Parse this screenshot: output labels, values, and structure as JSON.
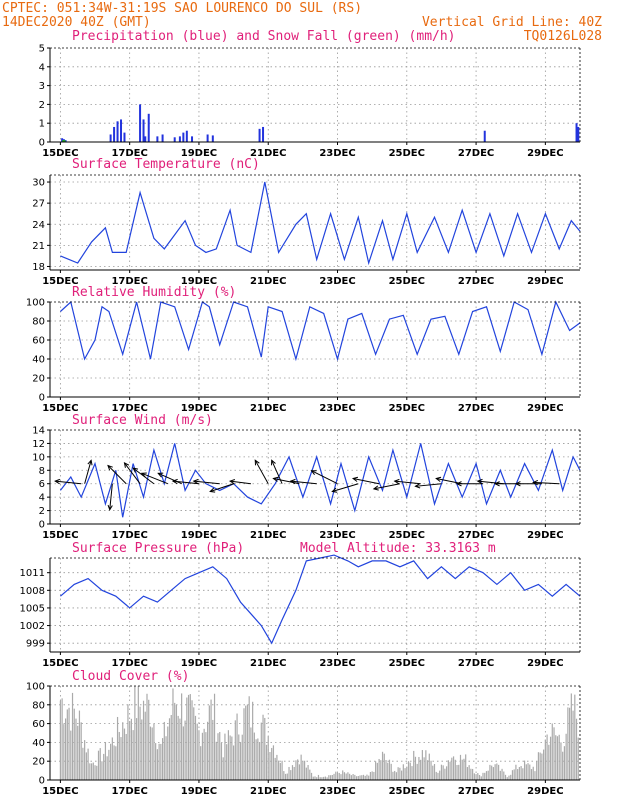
{
  "header": {
    "left1": "CPTEC:   051:34W-31:19S  SAO LOURENCO DO SUL (RS)",
    "left2": "14DEC2020 40Z (GMT)",
    "right1": "Vertical Grid Line: 40Z",
    "right2": "TQ0126L028"
  },
  "colors": {
    "title": "#e0207a",
    "header": "#e86a10",
    "line": "#2244dd",
    "precip": "#2233dd",
    "snow": "#22aa22",
    "cloud": "#aaaaaa",
    "vector": "#000000"
  },
  "x_labels": [
    "15DEC",
    "17DEC",
    "19DEC",
    "21DEC",
    "23DEC",
    "25DEC",
    "27DEC",
    "29DEC"
  ],
  "chart_data": [
    {
      "type": "bar",
      "title": "Precipitation (blue) and Snow Fall (green) (mm/h)",
      "yticks": [
        "0",
        "1",
        "2",
        "3",
        "4",
        "5"
      ],
      "ylim": [
        0,
        5
      ],
      "x_days": [
        0.05,
        0.1,
        0.15,
        1.45,
        1.55,
        1.65,
        1.75,
        1.85,
        2.3,
        2.4,
        2.45,
        2.55,
        2.8,
        2.95,
        3.3,
        3.45,
        3.55,
        3.65,
        3.8,
        4.25,
        4.4,
        5.75,
        5.85,
        12.25,
        14.9,
        14.95
      ],
      "values": [
        0.2,
        0.15,
        0.1,
        0.4,
        0.8,
        1.1,
        1.2,
        0.5,
        2.0,
        1.2,
        0.3,
        1.5,
        0.3,
        0.4,
        0.25,
        0.3,
        0.5,
        0.6,
        0.3,
        0.4,
        0.35,
        0.7,
        0.8,
        0.6,
        1.0,
        0.8
      ],
      "snow_x_days": [
        0.08,
        0.12
      ],
      "snow_values": [
        0.1,
        0.1
      ]
    },
    {
      "type": "line",
      "title": "Surface Temperature (nC)",
      "yticks": [
        "18",
        "21",
        "24",
        "27",
        "30"
      ],
      "ylim": [
        17.5,
        31
      ],
      "x_days": [
        0,
        0.5,
        0.9,
        1.3,
        1.5,
        1.9,
        2.3,
        2.7,
        3.0,
        3.6,
        3.9,
        4.2,
        4.5,
        4.9,
        5.1,
        5.5,
        5.9,
        6.3,
        6.8,
        7.1,
        7.4,
        7.8,
        8.2,
        8.6,
        8.9,
        9.3,
        9.6,
        10.0,
        10.3,
        10.8,
        11.2,
        11.6,
        12.0,
        12.4,
        12.8,
        13.2,
        13.6,
        14.0,
        14.4,
        14.75,
        15.0
      ],
      "values": [
        19.5,
        18.5,
        21.5,
        23.5,
        20.0,
        20.0,
        28.5,
        22.0,
        20.5,
        24.5,
        21.0,
        20.0,
        20.5,
        26.0,
        21.0,
        20.0,
        30.0,
        20.0,
        24.0,
        25.5,
        19.0,
        25.5,
        19.0,
        25.0,
        18.5,
        24.5,
        19.0,
        25.5,
        20.0,
        25.0,
        20.0,
        26.0,
        20.0,
        25.5,
        19.5,
        25.5,
        20.0,
        25.5,
        20.5,
        24.5,
        23.0
      ]
    },
    {
      "type": "line",
      "title": "Relative Humidity (%)",
      "yticks": [
        "0",
        "20",
        "40",
        "60",
        "80",
        "100"
      ],
      "ylim": [
        0,
        100
      ],
      "x_days": [
        0,
        0.3,
        0.7,
        1.0,
        1.2,
        1.4,
        1.8,
        2.2,
        2.6,
        2.9,
        3.3,
        3.7,
        4.1,
        4.3,
        4.6,
        5.0,
        5.4,
        5.8,
        6.0,
        6.4,
        6.8,
        7.2,
        7.6,
        8.0,
        8.3,
        8.7,
        9.1,
        9.5,
        9.9,
        10.3,
        10.7,
        11.1,
        11.5,
        11.9,
        12.3,
        12.7,
        13.1,
        13.5,
        13.9,
        14.3,
        14.7,
        15.0
      ],
      "values": [
        90,
        100,
        40,
        60,
        95,
        90,
        45,
        100,
        40,
        100,
        95,
        50,
        100,
        95,
        55,
        100,
        95,
        42,
        95,
        90,
        40,
        95,
        88,
        40,
        82,
        88,
        45,
        82,
        86,
        45,
        82,
        85,
        45,
        90,
        95,
        48,
        100,
        92,
        45,
        100,
        70,
        78
      ]
    },
    {
      "type": "line",
      "title": "Surface Wind (m/s)",
      "yticks": [
        "0",
        "2",
        "4",
        "6",
        "8",
        "10",
        "12",
        "14"
      ],
      "ylim": [
        0,
        14
      ],
      "x_days": [
        0,
        0.3,
        0.6,
        1.0,
        1.3,
        1.6,
        1.8,
        2.1,
        2.4,
        2.7,
        3.0,
        3.3,
        3.6,
        3.9,
        4.2,
        4.6,
        5.0,
        5.4,
        5.8,
        6.2,
        6.6,
        7.0,
        7.4,
        7.8,
        8.1,
        8.5,
        8.9,
        9.3,
        9.6,
        10.0,
        10.4,
        10.8,
        11.2,
        11.6,
        12.0,
        12.3,
        12.7,
        13.0,
        13.4,
        13.8,
        14.2,
        14.5,
        14.8,
        15.0
      ],
      "values": [
        5,
        7,
        4,
        9,
        3,
        8,
        1,
        9,
        4,
        11,
        6,
        12,
        5,
        8,
        6,
        5,
        6,
        4,
        3,
        6,
        10,
        4,
        10,
        3,
        9,
        2,
        10,
        5,
        11,
        4,
        12,
        3,
        9,
        4,
        9,
        3,
        8,
        4,
        9,
        5,
        11,
        5,
        10,
        8
      ],
      "vectors": [
        {
          "x": 0.6,
          "u": -1.0,
          "v": 0.1
        },
        {
          "x": 0.7,
          "u": 0.25,
          "v": 0.9
        },
        {
          "x": 1.5,
          "u": -0.1,
          "v": -1.0
        },
        {
          "x": 1.9,
          "u": -0.7,
          "v": 0.7
        },
        {
          "x": 2.3,
          "u": -0.6,
          "v": 0.8
        },
        {
          "x": 2.7,
          "u": -0.8,
          "v": 0.6
        },
        {
          "x": 3.1,
          "u": -1.0,
          "v": 0.4
        },
        {
          "x": 3.5,
          "u": -0.9,
          "v": 0.4
        },
        {
          "x": 4.0,
          "u": -1.0,
          "v": 0.1
        },
        {
          "x": 4.6,
          "u": -1.0,
          "v": 0.1
        },
        {
          "x": 5.0,
          "u": -0.9,
          "v": -0.3
        },
        {
          "x": 5.5,
          "u": -0.8,
          "v": 0.1
        },
        {
          "x": 6.0,
          "u": -0.5,
          "v": 0.9
        },
        {
          "x": 6.4,
          "u": -0.4,
          "v": 0.9
        },
        {
          "x": 6.9,
          "u": -1.0,
          "v": 0.2
        },
        {
          "x": 7.4,
          "u": -1.0,
          "v": 0.1
        },
        {
          "x": 8.0,
          "u": -1.0,
          "v": 0.5
        },
        {
          "x": 8.6,
          "u": -1.0,
          "v": -0.3
        },
        {
          "x": 9.2,
          "u": -1.0,
          "v": 0.2
        },
        {
          "x": 9.8,
          "u": -1.0,
          "v": -0.2
        },
        {
          "x": 10.4,
          "u": -1.0,
          "v": 0.1
        },
        {
          "x": 11.0,
          "u": -1.0,
          "v": -0.1
        },
        {
          "x": 11.6,
          "u": -1.0,
          "v": 0.2
        },
        {
          "x": 12.2,
          "u": -1.0,
          "v": 0.0
        },
        {
          "x": 12.8,
          "u": -1.0,
          "v": 0.1
        },
        {
          "x": 13.3,
          "u": -1.0,
          "v": 0.0
        },
        {
          "x": 13.9,
          "u": -1.0,
          "v": 0.0
        },
        {
          "x": 14.4,
          "u": -1.0,
          "v": 0.05
        }
      ]
    },
    {
      "type": "line",
      "title": "Surface Pressure (hPa)",
      "annotation": "Model Altitude: 33.3163 m",
      "yticks": [
        "999",
        "1002",
        "1005",
        "1008",
        "1011"
      ],
      "ylim": [
        997.5,
        1013.5
      ],
      "x_days": [
        0,
        0.4,
        0.8,
        1.2,
        1.6,
        2.0,
        2.4,
        2.8,
        3.2,
        3.6,
        4.0,
        4.4,
        4.8,
        5.2,
        5.5,
        5.8,
        6.1,
        6.4,
        6.8,
        7.1,
        7.5,
        7.9,
        8.3,
        8.6,
        9.0,
        9.4,
        9.8,
        10.2,
        10.6,
        11.0,
        11.4,
        11.8,
        12.2,
        12.6,
        13.0,
        13.4,
        13.8,
        14.2,
        14.6,
        15.0
      ],
      "values": [
        1007,
        1009,
        1010,
        1008,
        1007,
        1005,
        1007,
        1006,
        1008,
        1010,
        1011,
        1012,
        1010,
        1006,
        1004,
        1002,
        999,
        1003,
        1008,
        1013,
        1013.5,
        1014,
        1013,
        1012,
        1013,
        1013,
        1012,
        1013,
        1010,
        1012,
        1010,
        1012,
        1011,
        1009,
        1011,
        1008,
        1009,
        1007,
        1009,
        1007
      ]
    },
    {
      "type": "bar",
      "title": "Cloud Cover (%)",
      "yticks": [
        "0",
        "20",
        "40",
        "60",
        "80",
        "100"
      ],
      "ylim": [
        0,
        100
      ],
      "profile_days": [
        0,
        0.5,
        0.9,
        1.4,
        1.8,
        2.2,
        2.6,
        2.9,
        3.3,
        3.7,
        4.0,
        4.4,
        4.7,
        5.1,
        5.4,
        5.8,
        6.2,
        6.5,
        6.9,
        7.3,
        7.7,
        8.1,
        8.5,
        8.9,
        9.3,
        9.7,
        10.1,
        10.5,
        10.9,
        11.3,
        11.7,
        12.1,
        12.5,
        12.9,
        13.3,
        13.7,
        14.1,
        14.5,
        14.8,
        15.0
      ],
      "profile_values": [
        100,
        80,
        20,
        40,
        70,
        95,
        90,
        40,
        100,
        85,
        60,
        90,
        40,
        65,
        85,
        70,
        40,
        10,
        30,
        5,
        5,
        10,
        5,
        5,
        30,
        10,
        25,
        35,
        10,
        30,
        25,
        5,
        20,
        5,
        20,
        15,
        60,
        50,
        90,
        70
      ]
    }
  ]
}
